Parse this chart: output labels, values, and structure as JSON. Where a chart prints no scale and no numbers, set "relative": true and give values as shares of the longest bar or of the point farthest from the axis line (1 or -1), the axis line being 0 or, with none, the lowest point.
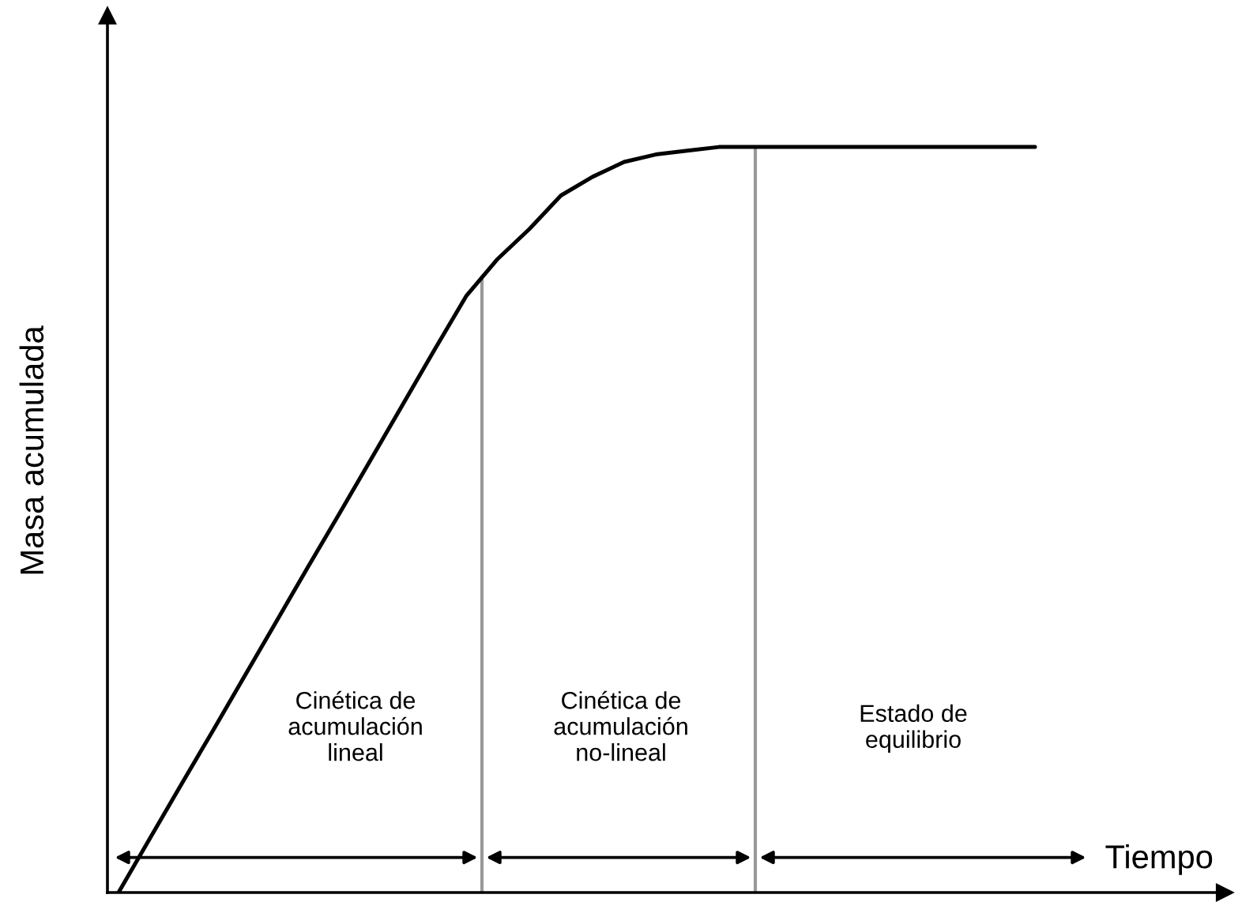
{
  "chart_data": {
    "type": "line",
    "relative": true,
    "xlabel": "Tiempo",
    "ylabel": "Masa acumulada",
    "categories": [
      null,
      null,
      null,
      null,
      null,
      null,
      null,
      null,
      null,
      null,
      null,
      null,
      null,
      null,
      null,
      null,
      null,
      null,
      null,
      null,
      null,
      null,
      null,
      null,
      null,
      null,
      null,
      null,
      null,
      null
    ],
    "series": [
      {
        "color": "#000000",
        "values": [
          0,
          0.073,
          0.146,
          0.218,
          0.291,
          0.364,
          0.437,
          0.509,
          0.582,
          0.655,
          0.728,
          0.8,
          0.85,
          0.89,
          0.935,
          0.96,
          0.98,
          0.99,
          0.995,
          1,
          1,
          1,
          1,
          1,
          1,
          1,
          1,
          1,
          1,
          1
        ]
      }
    ],
    "annotations": [
      "Cinética de\nacumulación\nlineal",
      "Cinética de\nacumulación\nno-lineal",
      "Estado de\nequilibrio"
    ]
  }
}
